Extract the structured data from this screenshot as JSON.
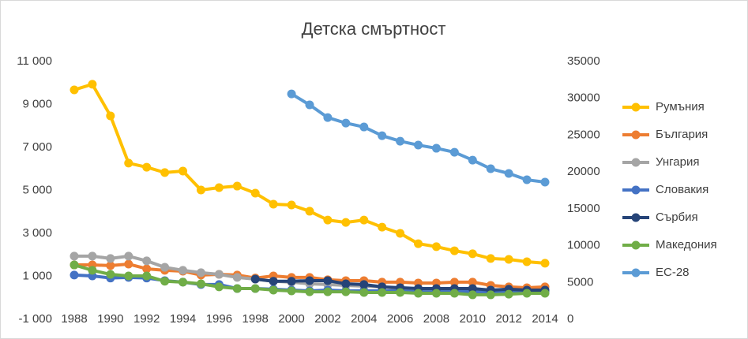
{
  "chart_data": {
    "type": "line",
    "title": "Детска смъртност",
    "categories": [
      "1988",
      null,
      "1990",
      null,
      "1992",
      null,
      "1994",
      null,
      "1996",
      null,
      "1998",
      null,
      "2000",
      null,
      "2002",
      null,
      "2004",
      null,
      "2006",
      null,
      "2008",
      null,
      "2010",
      null,
      "2012",
      null,
      "2014"
    ],
    "ylim": [
      -1000,
      11000
    ],
    "yticks": [
      {
        "value": -1000,
        "label": "-1 000"
      },
      {
        "value": 1000,
        "label": "1 000"
      },
      {
        "value": 3000,
        "label": "3 000"
      },
      {
        "value": 5000,
        "label": "5 000"
      },
      {
        "value": 7000,
        "label": "7 000"
      },
      {
        "value": 9000,
        "label": "9 000"
      },
      {
        "value": 11000,
        "label": "11 000"
      }
    ],
    "y2lim": [
      0,
      35000
    ],
    "y2ticks": [
      0,
      5000,
      10000,
      15000,
      20000,
      25000,
      30000,
      35000
    ],
    "legend": "right",
    "series": [
      {
        "name": "Румъния",
        "color": "#ffc000",
        "values": [
          9680,
          9940,
          8470,
          6270,
          6080,
          5830,
          5900,
          5020,
          5130,
          5200,
          4870,
          4360,
          4320,
          4030,
          3620,
          3510,
          3620,
          3290,
          3000,
          2520,
          2380,
          2190,
          2050,
          1830,
          1790,
          1680,
          1610
        ]
      },
      {
        "name": "България",
        "color": "#ed7d31",
        "values": [
          1530,
          1530,
          1500,
          1570,
          1350,
          1280,
          1240,
          1060,
          1090,
          1060,
          920,
          1020,
          950,
          950,
          840,
          800,
          800,
          730,
          730,
          690,
          690,
          730,
          730,
          580,
          510,
          470,
          510
        ]
      },
      {
        "name": "Унгария",
        "color": "#a5a5a5",
        "values": [
          1940,
          1940,
          1830,
          1940,
          1720,
          1420,
          1280,
          1170,
          1090,
          950,
          870,
          770,
          730,
          650,
          620,
          580,
          540,
          510,
          430,
          400,
          400,
          400,
          360,
          360,
          320,
          280,
          280
        ]
      },
      {
        "name": "Словакия",
        "color": "#4472c4",
        "values": [
          1060,
          1020,
          920,
          950,
          920,
          800,
          730,
          620,
          620,
          430,
          430,
          400,
          360,
          320,
          360,
          320,
          320,
          320,
          320,
          280,
          280,
          320,
          280,
          280,
          280,
          280,
          320
        ]
      },
      {
        "name": "Сърбия",
        "color": "#264478",
        "values": [
          null,
          null,
          null,
          null,
          null,
          null,
          null,
          null,
          null,
          null,
          870,
          770,
          770,
          800,
          800,
          650,
          620,
          510,
          470,
          430,
          430,
          430,
          430,
          360,
          400,
          360,
          360
        ]
      },
      {
        "name": "Македония",
        "color": "#70ad47",
        "values": [
          1530,
          1280,
          1090,
          1020,
          1020,
          770,
          730,
          650,
          510,
          430,
          430,
          360,
          320,
          280,
          280,
          280,
          250,
          250,
          250,
          210,
          210,
          210,
          140,
          140,
          170,
          210,
          210
        ]
      },
      {
        "name": "ЕС-28",
        "color": "#5b9bd5",
        "axis": "y2",
        "values": [
          null,
          null,
          null,
          null,
          null,
          null,
          null,
          null,
          null,
          null,
          null,
          null,
          30600,
          29110,
          27390,
          26640,
          26110,
          24930,
          24180,
          23650,
          23220,
          22680,
          21610,
          20440,
          19800,
          18940,
          18620
        ]
      }
    ]
  }
}
